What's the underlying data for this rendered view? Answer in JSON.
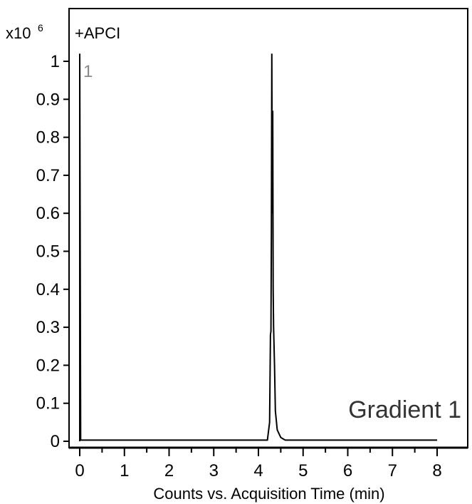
{
  "chart_data": {
    "type": "line",
    "title": "",
    "ion_mode_label": "+APCI",
    "y_multiplier": {
      "base": "x10",
      "exponent": "6"
    },
    "xlabel": "Counts vs. Acquisition Time (min)",
    "ylabel": "",
    "xlim": [
      0,
      8
    ],
    "ylim": [
      0,
      1.0
    ],
    "x_ticks": [
      0,
      1,
      2,
      3,
      4,
      5,
      6,
      7,
      8
    ],
    "x_tick_labels": [
      "0",
      "1",
      "2",
      "3",
      "4",
      "5",
      "6",
      "7",
      "8"
    ],
    "y_ticks": [
      0,
      0.1,
      0.2,
      0.3,
      0.4,
      0.5,
      0.6,
      0.7,
      0.8,
      0.9,
      1.0
    ],
    "y_tick_labels": [
      "0",
      "0.1",
      "0.2",
      "0.3",
      "0.4",
      "0.5",
      "0.6",
      "0.7",
      "0.8",
      "0.9",
      "1"
    ],
    "grid": false,
    "series": [
      {
        "label": "1",
        "color": "#000000",
        "x": [
          0.0,
          0.0,
          0.02,
          4.2,
          4.25,
          4.27,
          4.28,
          4.29,
          4.3,
          4.31,
          4.32,
          4.33,
          4.34,
          4.36,
          4.38,
          4.42,
          4.5,
          4.6,
          8.0
        ],
        "y": [
          0.0,
          1.02,
          0.003,
          0.003,
          0.05,
          0.28,
          0.29,
          0.55,
          1.02,
          0.6,
          0.87,
          0.4,
          0.3,
          0.2,
          0.08,
          0.03,
          0.01,
          0.003,
          0.003
        ]
      }
    ],
    "annotations": [
      {
        "text": "Gradient 1",
        "position": "bottom-right"
      }
    ]
  }
}
